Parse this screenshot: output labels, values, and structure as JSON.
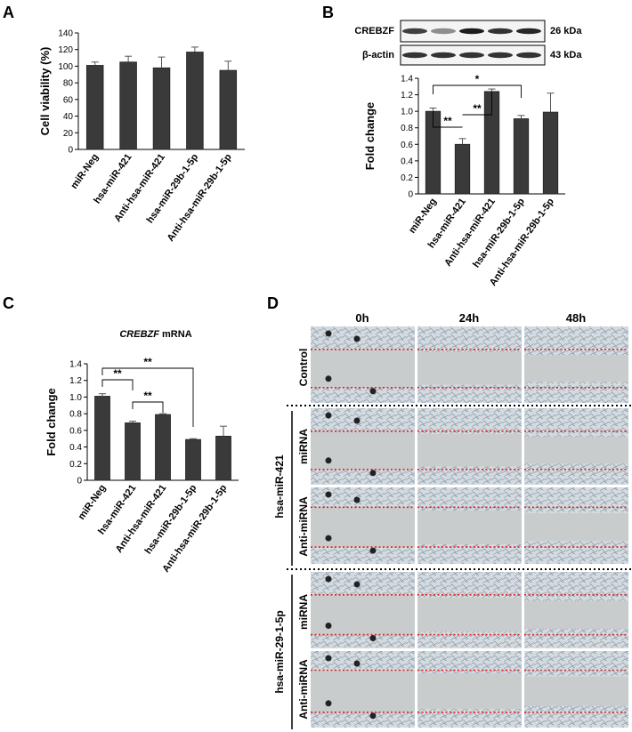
{
  "panels": {
    "A": "A",
    "B": "B",
    "C": "C",
    "D": "D"
  },
  "chart_data": [
    {
      "type": "bar",
      "panel": "A",
      "ylabel": "Cell viability (%)",
      "ylim": [
        0,
        140
      ],
      "yticks": [
        "0",
        "20",
        "40",
        "60",
        "80",
        "100",
        "120",
        "140"
      ],
      "categories": [
        "miR-Neg",
        "hsa-miR-421",
        "Anti-hsa-miR-421",
        "hsa-miR-29b-1-5p",
        "Anti-hsa-miR-29b-1-5p"
      ],
      "values": [
        101,
        105,
        98,
        117,
        95
      ],
      "errors": [
        4,
        7,
        13,
        6,
        11
      ],
      "color": "#3a3a3a"
    },
    {
      "type": "bar",
      "panel": "B",
      "ylabel": "Fold change",
      "ylim": [
        0,
        1.4
      ],
      "yticks": [
        "0",
        "0.2",
        "0.4",
        "0.6",
        "0.8",
        "1.0",
        "1.2",
        "1.4"
      ],
      "categories": [
        "miR-Neg",
        "hsa-miR-421",
        "Anti-hsa-miR-421",
        "hsa-miR-29b-1-5p",
        "Anti-hsa-miR-29b-1-5p"
      ],
      "values": [
        1.0,
        0.6,
        1.24,
        0.91,
        0.99
      ],
      "errors": [
        0.04,
        0.07,
        0.03,
        0.04,
        0.23
      ],
      "significance": [
        {
          "from": 0,
          "to": 1,
          "label": "**"
        },
        {
          "from": 1,
          "to": 2,
          "label": "**"
        },
        {
          "from": 0,
          "to": 3,
          "label": "*"
        }
      ],
      "blot": [
        {
          "protein": "CREBZF",
          "size": "26 kDa"
        },
        {
          "protein": "β-actin",
          "size": "43 kDa"
        }
      ],
      "color": "#3a3a3a"
    },
    {
      "type": "bar",
      "panel": "C",
      "title_italic": "CREBZF",
      "title_rest": " mRNA",
      "ylabel": "Fold change",
      "ylim": [
        0,
        1.4
      ],
      "yticks": [
        "0",
        "0.2",
        "0.4",
        "0.6",
        "0.8",
        "1.0",
        "1.2",
        "1.4"
      ],
      "categories": [
        "miR-Neg",
        "hsa-miR-421",
        "Anti-hsa-miR-421",
        "hsa-miR-29b-1-5p",
        "Anti-hsa-miR-29b-1-5p"
      ],
      "values": [
        1.01,
        0.69,
        0.79,
        0.49,
        0.53
      ],
      "errors": [
        0.03,
        0.02,
        0.01,
        0.01,
        0.12
      ],
      "significance": [
        {
          "from": 0,
          "to": 1,
          "label": "**"
        },
        {
          "from": 1,
          "to": 2,
          "label": "**"
        },
        {
          "from": 0,
          "to": 3,
          "label": "**"
        }
      ],
      "color": "#3a3a3a"
    }
  ],
  "wound": {
    "times": [
      "0h",
      "24h",
      "48h"
    ],
    "rows": [
      {
        "label": "Control",
        "gap": [
          0.3,
          0.8
        ]
      },
      {
        "label": "miRNA",
        "gap": [
          0.3,
          0.8
        ]
      },
      {
        "label": "Anti-miRNA",
        "gap": [
          0.26,
          0.78
        ]
      },
      {
        "label": "miRNA",
        "gap": [
          0.3,
          0.82
        ]
      },
      {
        "label": "Anti-miRNA",
        "gap": [
          0.25,
          0.8
        ]
      }
    ],
    "groups": [
      {
        "label": "hsa-miR-421"
      },
      {
        "label": "hsa-miR-29-1-5p"
      }
    ]
  }
}
